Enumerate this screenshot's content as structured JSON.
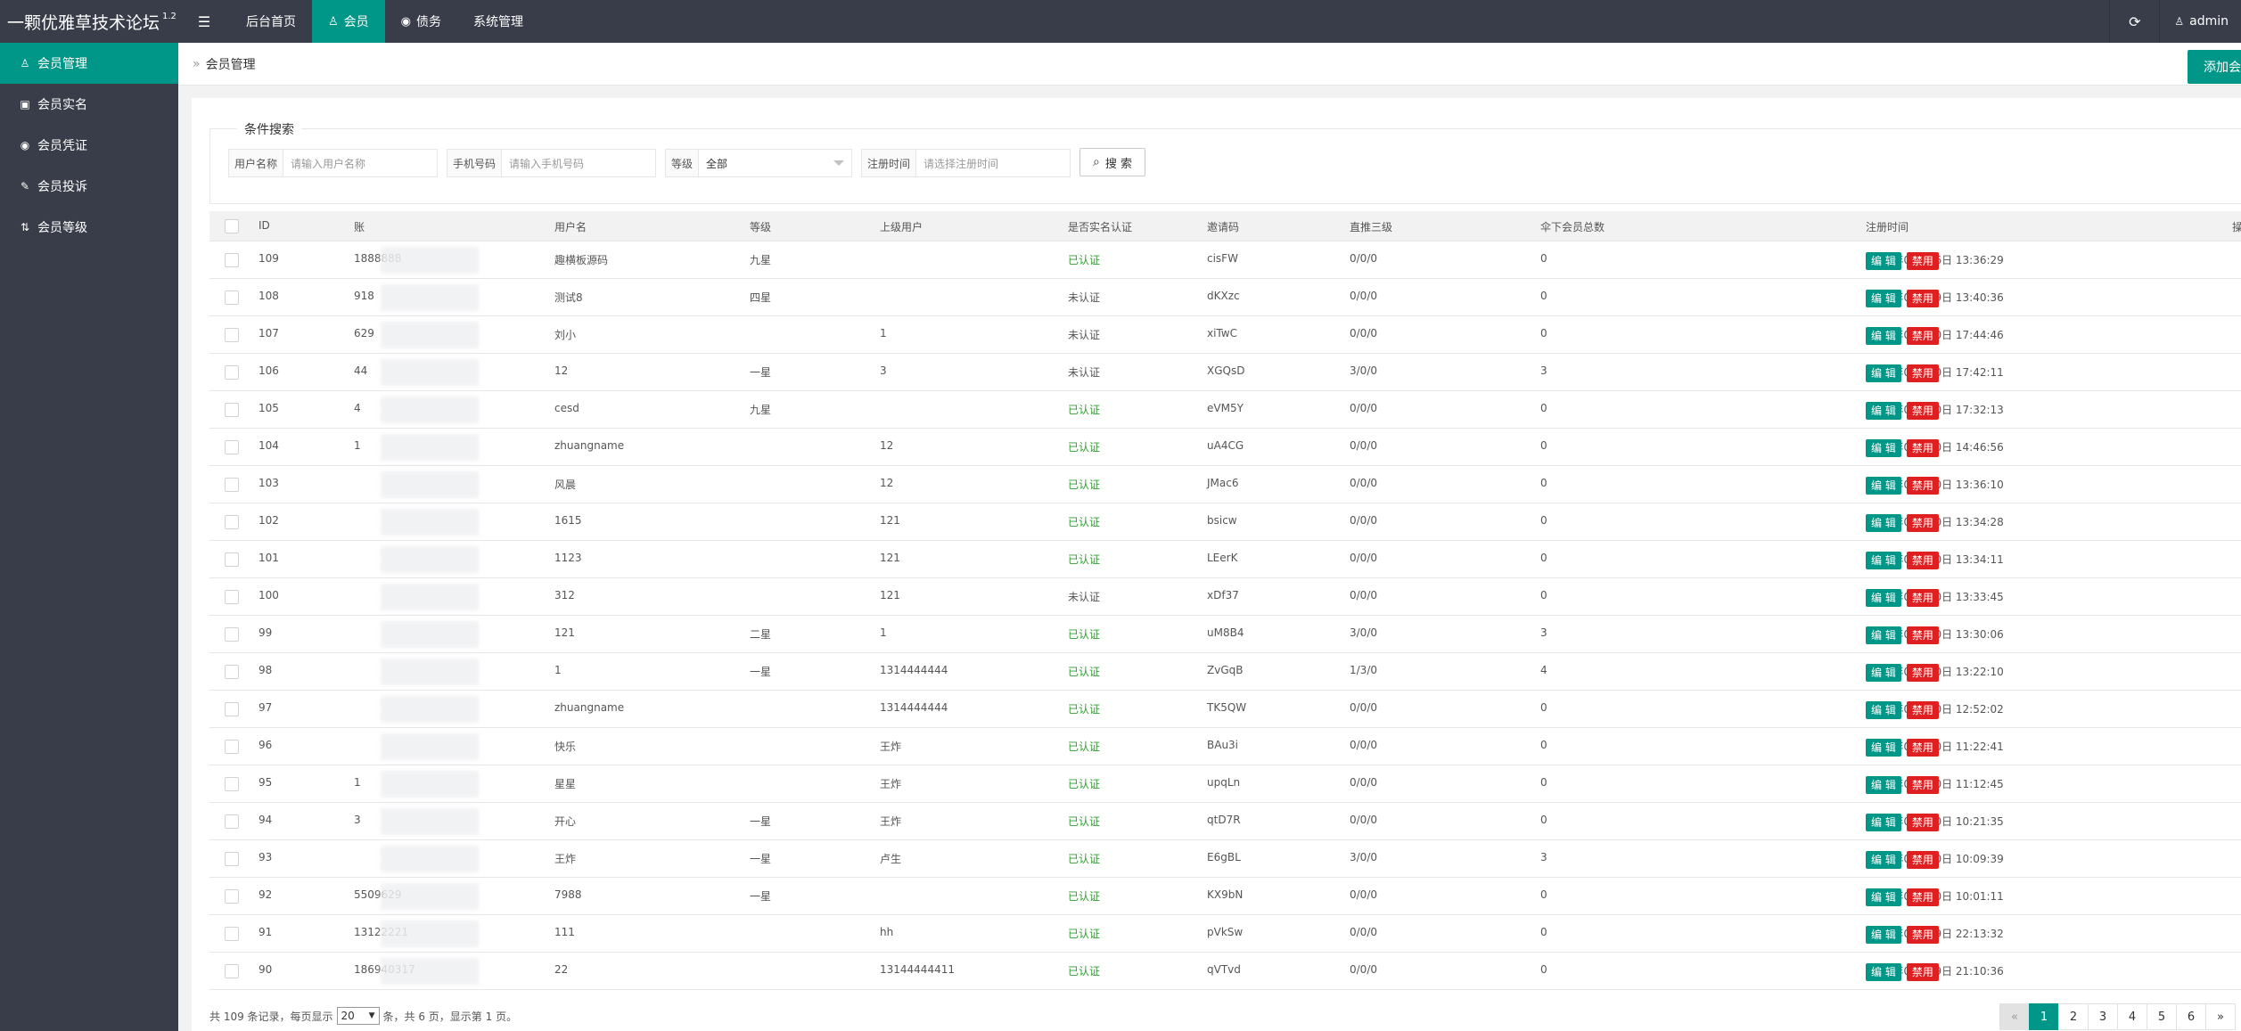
{
  "app": {
    "title": "一颗优雅草技术论坛",
    "version": "1.2",
    "admin_label": "admin"
  },
  "topnav": [
    {
      "label": "后台首页",
      "icon": ""
    },
    {
      "label": "会员",
      "icon": "user-icon"
    },
    {
      "label": "债务",
      "icon": "circle-dot-icon"
    },
    {
      "label": "系统管理",
      "icon": ""
    }
  ],
  "sidebar": [
    {
      "label": "会员管理",
      "icon": "user-icon"
    },
    {
      "label": "会员实名",
      "icon": "id-card-icon"
    },
    {
      "label": "会员凭证",
      "icon": "badge-icon"
    },
    {
      "label": "会员投诉",
      "icon": "complaint-icon"
    },
    {
      "label": "会员等级",
      "icon": "sort-icon"
    }
  ],
  "breadcrumb": "会员管理",
  "add_button": "添加会",
  "search": {
    "legend": "条件搜索",
    "username_label": "用户名称",
    "username_placeholder": "请输入用户名称",
    "phone_label": "手机号码",
    "phone_placeholder": "请输入手机号码",
    "level_label": "等级",
    "level_value": "全部",
    "regtime_label": "注册时间",
    "regtime_placeholder": "请选择注册时间",
    "button": "搜 索"
  },
  "table": {
    "headers": [
      "ID",
      "账",
      "用户名",
      "等级",
      "上级用户",
      "是否实名认证",
      "邀请码",
      "直推三级",
      "伞下会员总数",
      "注册时间",
      "操作"
    ],
    "edit_label": "编 辑",
    "ban_label": "禁用",
    "rows": [
      {
        "id": "109",
        "account": "1888888",
        "username": "趣横板源码",
        "level": "九星",
        "parent": "",
        "verified": "已认证",
        "invite": "cisFW",
        "direct": "0/0/0",
        "total": "0",
        "time": "2020年02月06日 13:36:29"
      },
      {
        "id": "108",
        "account": "918",
        "username": "测试8",
        "level": "四星",
        "parent": "",
        "verified": "未认证",
        "invite": "dKXzc",
        "direct": "0/0/0",
        "total": "0",
        "time": "2019年09月29日 13:40:36"
      },
      {
        "id": "107",
        "account": "629",
        "username": "刘小",
        "level": "",
        "parent": "1",
        "verified": "未认证",
        "invite": "xiTwC",
        "direct": "0/0/0",
        "total": "0",
        "time": "2019年09月20日 17:44:46"
      },
      {
        "id": "106",
        "account": "44",
        "username": "12",
        "level": "一星",
        "parent": "3",
        "verified": "未认证",
        "invite": "XGQsD",
        "direct": "3/0/0",
        "total": "3",
        "time": "2019年09月20日 17:42:11"
      },
      {
        "id": "105",
        "account": "4",
        "username": "cesd",
        "level": "九星",
        "parent": "",
        "verified": "已认证",
        "invite": "eVM5Y",
        "direct": "0/0/0",
        "total": "0",
        "time": "2019年09月20日 17:32:13"
      },
      {
        "id": "104",
        "account": "1",
        "username": "zhuangname",
        "level": "",
        "parent": "12",
        "verified": "已认证",
        "invite": "uA4CG",
        "direct": "0/0/0",
        "total": "0",
        "time": "2019年09月20日 14:46:56"
      },
      {
        "id": "103",
        "account": "",
        "username": "风晨",
        "level": "",
        "parent": "12",
        "verified": "已认证",
        "invite": "JMac6",
        "direct": "0/0/0",
        "total": "0",
        "time": "2019年09月20日 13:36:10"
      },
      {
        "id": "102",
        "account": "",
        "username": "1615",
        "level": "",
        "parent": "121",
        "verified": "已认证",
        "invite": "bsicw",
        "direct": "0/0/0",
        "total": "0",
        "time": "2019年09月20日 13:34:28"
      },
      {
        "id": "101",
        "account": "",
        "username": "1123",
        "level": "",
        "parent": "121",
        "verified": "已认证",
        "invite": "LEerK",
        "direct": "0/0/0",
        "total": "0",
        "time": "2019年09月20日 13:34:11"
      },
      {
        "id": "100",
        "account": "",
        "username": "312",
        "level": "",
        "parent": "121",
        "verified": "未认证",
        "invite": "xDf37",
        "direct": "0/0/0",
        "total": "0",
        "time": "2019年09月20日 13:33:45"
      },
      {
        "id": "99",
        "account": "",
        "username": "121",
        "level": "二星",
        "parent": "1",
        "verified": "已认证",
        "invite": "uM8B4",
        "direct": "3/0/0",
        "total": "3",
        "time": "2019年09月20日 13:30:06"
      },
      {
        "id": "98",
        "account": "",
        "username": "1",
        "level": "一星",
        "parent": "1314444444",
        "verified": "已认证",
        "invite": "ZvGqB",
        "direct": "1/3/0",
        "total": "4",
        "time": "2019年09月20日 13:22:10"
      },
      {
        "id": "97",
        "account": "",
        "username": "zhuangname",
        "level": "",
        "parent": "1314444444",
        "verified": "已认证",
        "invite": "TK5QW",
        "direct": "0/0/0",
        "total": "0",
        "time": "2019年09月20日 12:52:02"
      },
      {
        "id": "96",
        "account": "",
        "username": "快乐",
        "level": "",
        "parent": "王炸",
        "verified": "已认证",
        "invite": "BAu3i",
        "direct": "0/0/0",
        "total": "0",
        "time": "2019年09月20日 11:22:41"
      },
      {
        "id": "95",
        "account": "1",
        "username": "星星",
        "level": "",
        "parent": "王炸",
        "verified": "已认证",
        "invite": "upqLn",
        "direct": "0/0/0",
        "total": "0",
        "time": "2019年09月20日 11:12:45"
      },
      {
        "id": "94",
        "account": "3",
        "username": "开心",
        "level": "一星",
        "parent": "王炸",
        "verified": "已认证",
        "invite": "qtD7R",
        "direct": "0/0/0",
        "total": "0",
        "time": "2019年09月20日 10:21:35"
      },
      {
        "id": "93",
        "account": "",
        "username": "王炸",
        "level": "一星",
        "parent": "卢生",
        "verified": "已认证",
        "invite": "E6gBL",
        "direct": "3/0/0",
        "total": "3",
        "time": "2019年09月20日 10:09:39"
      },
      {
        "id": "92",
        "account": "5509629",
        "username": "7988",
        "level": "一星",
        "parent": "",
        "verified": "已认证",
        "invite": "KX9bN",
        "direct": "0/0/0",
        "total": "0",
        "time": "2019年09月20日 10:01:11"
      },
      {
        "id": "91",
        "account": "13122221",
        "username": "111",
        "level": "",
        "parent": "hh",
        "verified": "已认证",
        "invite": "pVkSw",
        "direct": "0/0/0",
        "total": "0",
        "time": "2019年09月19日 22:13:32"
      },
      {
        "id": "90",
        "account": "186940317",
        "username": "22",
        "level": "",
        "parent": "13144444411",
        "verified": "已认证",
        "invite": "qVTvd",
        "direct": "0/0/0",
        "total": "0",
        "time": "2019年09月19日 21:10:36"
      }
    ]
  },
  "footer": {
    "prefix": "共 109 条记录，每页显示",
    "per_page": "20",
    "suffix": "条，共 6 页，显示第 1 页。"
  },
  "pager": {
    "prev": "«",
    "pages": [
      "1",
      "2",
      "3",
      "4",
      "5",
      "6"
    ],
    "next": "»"
  }
}
